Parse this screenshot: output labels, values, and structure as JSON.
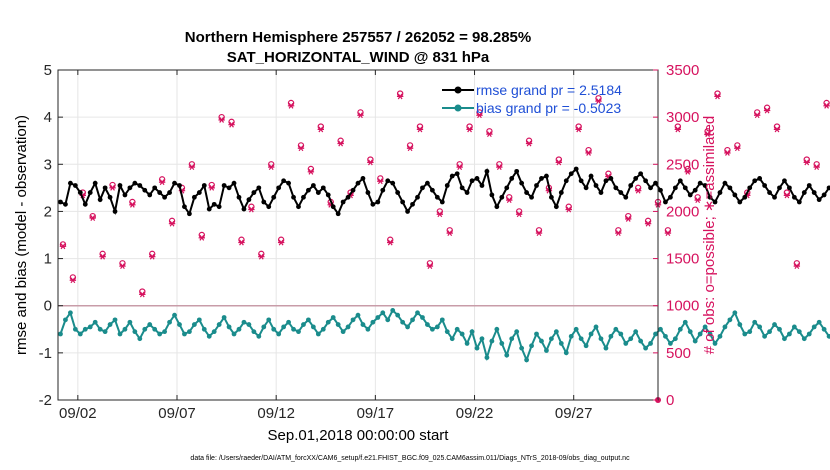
{
  "chart_data": {
    "type": "line",
    "title": [
      "Northern Hemisphere 257557 / 262052 = 98.285%",
      "SAT_HORIZONTAL_WIND @ 831 hPa"
    ],
    "xlabel": "Sep.01,2018 00:00:00 start",
    "ylabel_left": "rmse and bias (model - observation)",
    "ylabel_right": "# of obs: o=possible; ∗=assimilated",
    "footnote": "data file: /Users/raeder/DAI/ATM_forcXX/CAM6_setup/f.e21.FHIST_BGC.f09_025.CAM6assim.011/Diags_NTrS_2018-09/obs_diag_output.nc",
    "x_unit": "days since Sep.01,2018 00:00:00",
    "xlim": [
      0.0,
      30.25
    ],
    "ylim_left": [
      -2,
      5
    ],
    "ylim_right": [
      0,
      3500
    ],
    "x_ticks": [
      1,
      6,
      11,
      16,
      21,
      26
    ],
    "x_tick_labels": [
      "09/02",
      "09/07",
      "09/12",
      "09/17",
      "09/22",
      "09/27"
    ],
    "y_ticks_left": [
      -2,
      -1,
      0,
      1,
      2,
      3,
      4,
      5
    ],
    "y_tick_labels_left": [
      "-2",
      "-1",
      "0",
      "1",
      "2",
      "3",
      "4",
      "5"
    ],
    "y_ticks_right": [
      0,
      500,
      1000,
      1500,
      2000,
      2500,
      3000,
      3500
    ],
    "y_tick_labels_right": [
      "0",
      "500",
      "1000",
      "1500",
      "2000",
      "2500",
      "3000",
      "3500"
    ],
    "grid": true,
    "legend_position": "top-right",
    "colors": {
      "rmse": "#000000",
      "bias": "#1a8c8c",
      "obs": "#d6125e",
      "zero_line": "#c89ca8",
      "grid": "#e6e6e6"
    },
    "series": [
      {
        "name": "rmse grand pr = 2.5184",
        "axis": "left",
        "color": "#000000",
        "marker": "circle",
        "x_start": 0.125,
        "x_step": 0.25,
        "values": [
          2.2,
          2.15,
          2.6,
          2.55,
          2.4,
          2.15,
          2.4,
          2.6,
          2.25,
          2.5,
          2.3,
          2.0,
          2.55,
          2.35,
          2.5,
          2.6,
          2.55,
          2.45,
          2.35,
          2.5,
          2.4,
          2.3,
          2.4,
          2.6,
          2.55,
          2.1,
          1.95,
          2.3,
          2.4,
          2.55,
          2.05,
          2.15,
          2.1,
          2.55,
          2.5,
          2.6,
          2.3,
          2.05,
          2.25,
          2.4,
          2.5,
          2.2,
          2.1,
          2.3,
          2.5,
          2.65,
          2.6,
          2.3,
          2.1,
          2.3,
          2.45,
          2.55,
          2.4,
          2.5,
          2.35,
          2.1,
          1.95,
          2.2,
          2.3,
          2.45,
          2.6,
          2.7,
          2.4,
          2.15,
          2.2,
          2.45,
          2.65,
          2.6,
          2.4,
          2.2,
          2.0,
          2.15,
          2.3,
          2.5,
          2.6,
          2.45,
          2.3,
          2.2,
          2.55,
          2.75,
          2.8,
          2.5,
          2.4,
          2.65,
          2.7,
          2.55,
          2.85,
          2.35,
          2.1,
          2.3,
          2.5,
          2.7,
          2.85,
          2.6,
          2.4,
          2.3,
          2.55,
          2.7,
          2.75,
          2.3,
          2.1,
          2.4,
          2.65,
          2.8,
          2.9,
          2.65,
          2.5,
          2.75,
          2.55,
          2.4,
          2.65,
          2.7,
          2.5,
          2.4,
          2.3,
          2.55,
          2.7,
          2.8,
          2.65,
          2.5,
          2.6,
          2.45,
          2.2,
          2.3,
          2.5,
          2.65,
          2.5,
          2.35,
          2.45,
          2.6,
          2.55,
          2.3,
          2.2,
          2.4,
          2.6,
          2.5,
          2.35,
          2.2,
          2.3,
          2.5,
          2.65,
          2.7,
          2.55,
          2.4,
          2.3,
          2.5,
          2.65,
          2.5,
          2.3,
          2.2,
          2.4,
          2.55,
          2.4,
          2.25,
          2.35,
          2.5,
          2.45,
          2.3,
          2.2,
          2.4,
          2.6,
          2.75,
          2.55,
          2.35,
          2.45,
          2.6,
          2.5,
          2.3,
          2.15,
          2.3,
          2.5,
          2.6,
          2.4,
          2.3,
          2.45,
          2.55,
          2.45,
          2.3,
          2.5,
          2.7,
          2.9,
          2.65,
          2.4,
          2.3,
          2.5,
          2.65,
          2.55,
          2.4,
          2.5,
          2.8,
          2.95,
          2.7,
          2.55,
          2.4,
          2.6,
          2.7,
          2.8,
          2.9,
          2.75,
          2.6,
          2.7,
          2.85,
          2.65,
          2.55,
          2.6,
          2.7,
          2.5
        ]
      },
      {
        "name": "bias grand pr = -0.5023",
        "axis": "left",
        "color": "#1a8c8c",
        "marker": "circle",
        "x_start": 0.125,
        "x_step": 0.25,
        "values": [
          -0.6,
          -0.3,
          -0.15,
          -0.5,
          -0.6,
          -0.5,
          -0.45,
          -0.35,
          -0.5,
          -0.55,
          -0.4,
          -0.3,
          -0.6,
          -0.5,
          -0.35,
          -0.55,
          -0.7,
          -0.5,
          -0.4,
          -0.5,
          -0.6,
          -0.55,
          -0.35,
          -0.2,
          -0.4,
          -0.6,
          -0.55,
          -0.4,
          -0.3,
          -0.5,
          -0.65,
          -0.55,
          -0.4,
          -0.25,
          -0.45,
          -0.6,
          -0.5,
          -0.35,
          -0.4,
          -0.55,
          -0.65,
          -0.45,
          -0.3,
          -0.5,
          -0.6,
          -0.45,
          -0.35,
          -0.5,
          -0.55,
          -0.4,
          -0.3,
          -0.45,
          -0.6,
          -0.5,
          -0.35,
          -0.25,
          -0.4,
          -0.55,
          -0.45,
          -0.3,
          -0.2,
          -0.4,
          -0.5,
          -0.35,
          -0.25,
          -0.15,
          -0.3,
          -0.1,
          -0.2,
          -0.35,
          -0.45,
          -0.3,
          -0.15,
          -0.25,
          -0.4,
          -0.5,
          -0.45,
          -0.3,
          -0.55,
          -0.7,
          -0.5,
          -0.6,
          -0.8,
          -0.55,
          -0.9,
          -0.7,
          -1.1,
          -0.75,
          -0.5,
          -0.8,
          -1.05,
          -0.7,
          -0.55,
          -0.9,
          -1.15,
          -0.85,
          -0.6,
          -0.75,
          -0.95,
          -0.7,
          -0.55,
          -0.8,
          -1.0,
          -0.65,
          -0.5,
          -0.7,
          -0.85,
          -0.6,
          -0.45,
          -0.7,
          -0.9,
          -0.65,
          -0.5,
          -0.6,
          -0.8,
          -0.7,
          -0.55,
          -0.75,
          -0.9,
          -0.8,
          -0.6,
          -0.5,
          -0.65,
          -0.8,
          -0.7,
          -0.5,
          -0.35,
          -0.55,
          -0.75,
          -0.6,
          -0.45,
          -0.6,
          -0.8,
          -0.65,
          -0.45,
          -0.3,
          -0.15,
          -0.4,
          -0.6,
          -0.55,
          -0.35,
          -0.45,
          -0.65,
          -0.55,
          -0.4,
          -0.5,
          -0.7,
          -0.6,
          -0.45,
          -0.55,
          -0.7,
          -0.6,
          -0.45,
          -0.35,
          -0.5,
          -0.65,
          -0.55,
          -0.4,
          -0.5,
          -0.65,
          -0.55,
          -0.4,
          -0.5,
          -0.7,
          -0.6,
          -0.45,
          -0.55,
          -0.75,
          -0.65,
          -0.5,
          -0.4,
          -0.55,
          -0.7,
          -0.6,
          -0.45,
          -0.55,
          -0.8,
          -0.65,
          -0.5,
          -0.6,
          -0.75,
          -0.55,
          -0.4,
          -0.3,
          -0.5,
          -0.65,
          -0.45,
          -0.35,
          -0.2,
          -0.35,
          -0.45,
          -0.1,
          -0.05,
          0.0,
          -0.2,
          -0.35,
          -0.1,
          0.05,
          0.1,
          0.2,
          0.05,
          -0.15,
          -0.35,
          -0.25,
          -0.1,
          -0.45,
          -0.55,
          -0.5,
          -0.55
        ]
      },
      {
        "name": "possible",
        "axis": "right",
        "color": "#d6125e",
        "marker": "o",
        "x_start": 0.25,
        "x_step": 0.5,
        "values": [
          1650,
          1300,
          2200,
          1950,
          1550,
          2280,
          1450,
          2100,
          1150,
          1550,
          2340,
          1900,
          2250,
          2500,
          1750,
          2280,
          3000,
          2950,
          1700,
          2050,
          1550,
          2500,
          1700,
          3150,
          2700,
          2450,
          2900,
          2100,
          2750,
          2200,
          3050,
          2550,
          2350,
          1700,
          3250,
          2700,
          2900,
          1450,
          2000,
          1800,
          2500,
          2900,
          3050,
          2850,
          2500,
          2150,
          2000,
          2750,
          1800,
          2250,
          2550,
          2050,
          2900,
          2650,
          3200,
          2400,
          1800,
          1950,
          2250,
          1900,
          2100,
          1800,
          2900,
          2450,
          2150,
          2850,
          3250,
          2650,
          2700,
          2200,
          3050,
          3100,
          2900,
          2200,
          1450,
          2550,
          2500,
          3150,
          2950,
          2600,
          2100,
          1700,
          2000
        ]
      },
      {
        "name": "assimilated",
        "axis": "right",
        "color": "#d6125e",
        "marker": "asterisk",
        "x_start": 0.25,
        "x_step": 0.5,
        "values": [
          1630,
          1270,
          2170,
          1930,
          1520,
          2250,
          1420,
          2070,
          1120,
          1520,
          2310,
          1870,
          2220,
          2470,
          1720,
          2250,
          2970,
          2920,
          1670,
          2020,
          1520,
          2470,
          1670,
          3120,
          2670,
          2420,
          2870,
          2070,
          2720,
          2170,
          3020,
          2520,
          2320,
          1670,
          3220,
          2670,
          2870,
          1420,
          1970,
          1770,
          2470,
          2870,
          3020,
          2820,
          2470,
          2120,
          1970,
          2720,
          1770,
          2220,
          2520,
          2020,
          2870,
          2620,
          3170,
          2370,
          1770,
          1920,
          2220,
          1870,
          2070,
          1770,
          2870,
          2420,
          2120,
          2820,
          3220,
          2620,
          2670,
          2170,
          3020,
          3070,
          2870,
          2170,
          1420,
          2520,
          2470,
          3120,
          2920,
          2570,
          2070,
          1670,
          1970
        ]
      }
    ]
  }
}
